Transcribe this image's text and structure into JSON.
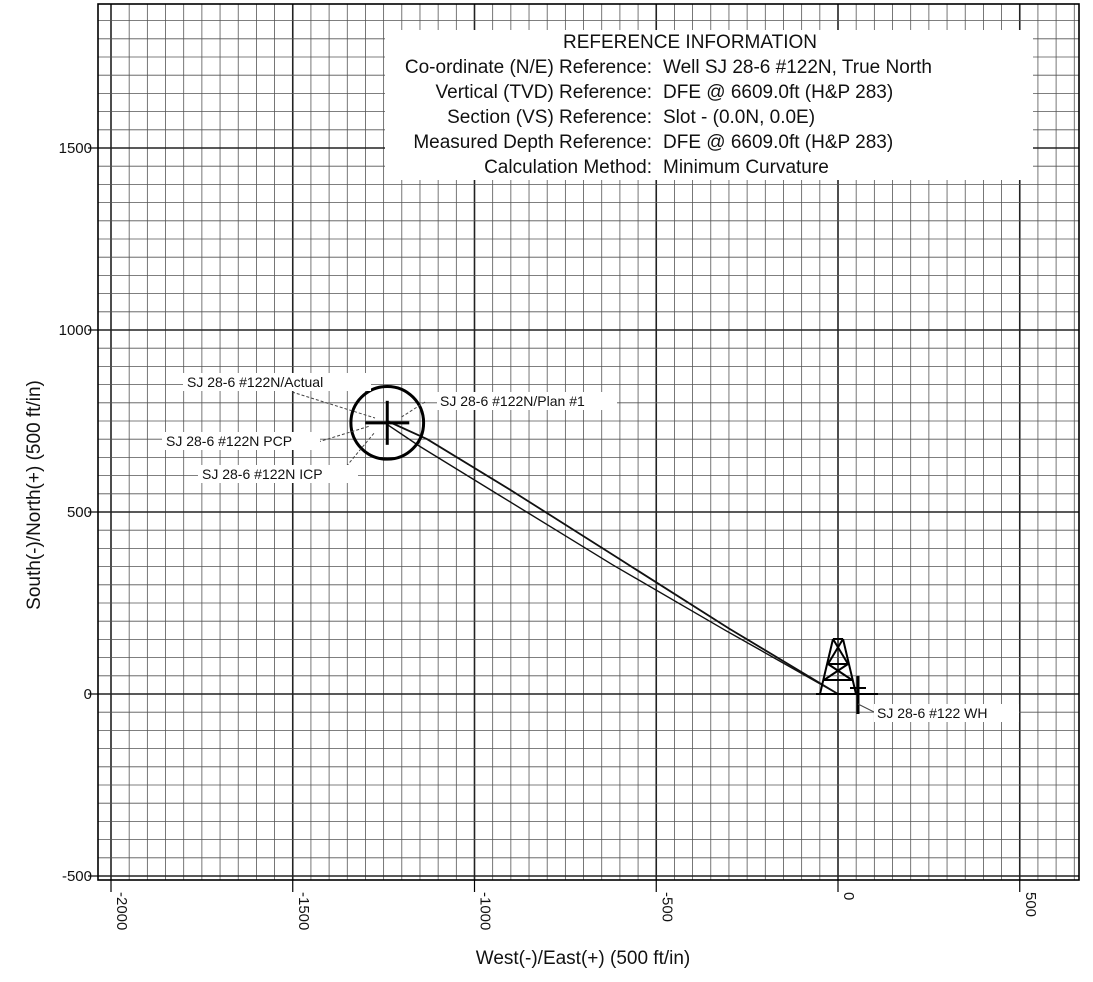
{
  "chart_data": {
    "type": "scatter",
    "xlabel": "West(-)/East(+) (500 ft/in)",
    "ylabel": "South(-)/North(+) (500 ft/in)",
    "xlim": [
      -2000,
      700
    ],
    "ylim": [
      -530,
      1900
    ],
    "x_ticks": [
      -2000,
      -1500,
      -1000,
      -500,
      0,
      500
    ],
    "y_ticks": [
      -500,
      0,
      500,
      1000,
      1500
    ],
    "grid": true,
    "reference_info": {
      "title": "REFERENCE INFORMATION",
      "rows": [
        {
          "label": "Co-ordinate (N/E) Reference:",
          "value": "Well SJ 28-6 #122N, True North"
        },
        {
          "label": "Vertical (TVD) Reference:",
          "value": "DFE @ 6609.0ft (H&P 283)"
        },
        {
          "label": "Section (VS) Reference:",
          "value": "Slot - (0.0N, 0.0E)"
        },
        {
          "label": "Measured Depth Reference:",
          "value": "DFE @ 6609.0ft (H&P 283)"
        },
        {
          "label": "Calculation Method:",
          "value": "Minimum Curvature"
        }
      ]
    },
    "series": [
      {
        "name": "SJ 28-6 #122N/Actual",
        "x": [
          0,
          -300,
          -600,
          -900,
          -1130,
          -1240
        ],
        "y": [
          0,
          180,
          370,
          560,
          700,
          750
        ]
      },
      {
        "name": "SJ 28-6 #122N/Plan #1",
        "x": [
          0,
          -310,
          -620,
          -930,
          -1150,
          -1240
        ],
        "y": [
          0,
          175,
          355,
          545,
          680,
          740
        ]
      }
    ],
    "annotations": [
      {
        "text": "SJ 28-6 #122N/Actual",
        "target": [
          -1240,
          745
        ]
      },
      {
        "text": "SJ 28-6 #122N/Plan #1",
        "target": [
          -1240,
          745
        ]
      },
      {
        "text": "SJ 28-6 #122N PCP",
        "target": [
          -1240,
          745
        ]
      },
      {
        "text": "SJ 28-6 #122N ICP",
        "target": [
          -1240,
          745
        ]
      },
      {
        "text": "SJ 28-6 #122 WH",
        "target": [
          0,
          0
        ]
      }
    ],
    "target_circle": {
      "center": [
        -1240,
        745
      ],
      "radius": 100
    }
  }
}
